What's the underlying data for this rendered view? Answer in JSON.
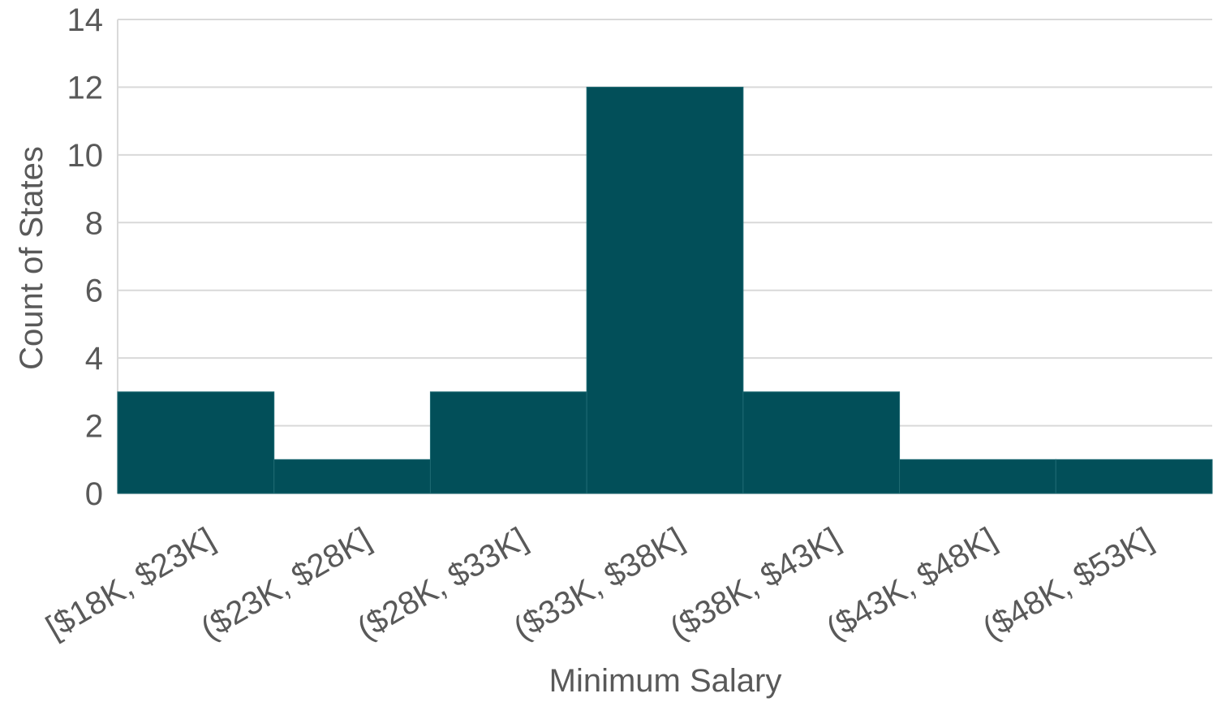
{
  "chart_data": {
    "type": "bar",
    "categories": [
      "[$18K, $23K]",
      "($23K, $28K]",
      "($28K, $33K]",
      "($33K, $38K]",
      "($38K, $43K]",
      "($43K, $48K]",
      "($48K, $53K]"
    ],
    "values": [
      3,
      1,
      3,
      12,
      3,
      1,
      1
    ],
    "xlabel": "Minimum Salary",
    "ylabel": "Count of States",
    "ylim": [
      0,
      14
    ],
    "yticks": [
      0,
      2,
      4,
      6,
      8,
      10,
      12,
      14
    ],
    "grid": true,
    "legend": "none",
    "colors": {
      "bar": "#024f59",
      "grid": "#d9d9d9",
      "text": "#595959"
    }
  }
}
